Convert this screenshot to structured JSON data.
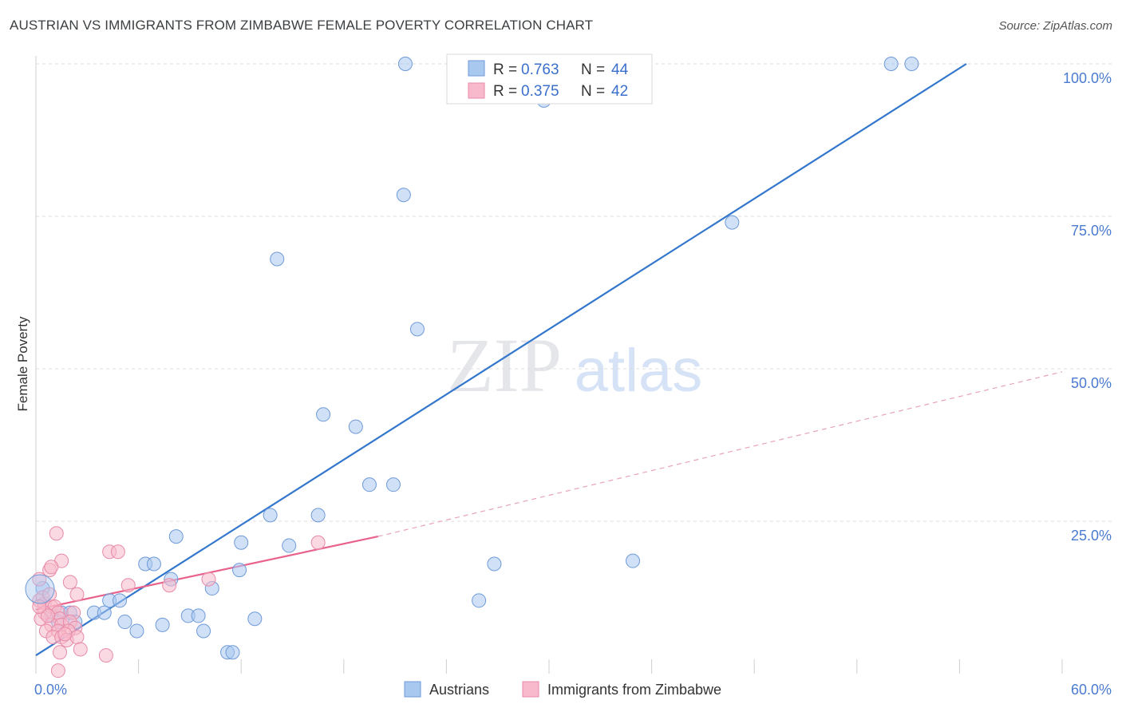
{
  "title": "AUSTRIAN VS IMMIGRANTS FROM ZIMBABWE FEMALE POVERTY CORRELATION CHART",
  "source": "Source: ZipAtlas.com",
  "watermark": {
    "zip": "ZIP",
    "atlas": "atlas"
  },
  "legend_top": [
    {
      "r_label": "R =",
      "r_value": "0.763",
      "n_label": "N =",
      "n_value": "44",
      "color": "#a9c8f0"
    },
    {
      "r_label": "R =",
      "r_value": "0.375",
      "n_label": "N =",
      "n_value": "42",
      "color": "#f7b9cb"
    }
  ],
  "legend_bottom": [
    {
      "label": "Austrians",
      "color": "#a9c8f0"
    },
    {
      "label": "Immigrants from Zimbabwe",
      "color": "#f7b9cb"
    }
  ],
  "chart_data": {
    "type": "scatter",
    "title": "AUSTRIAN VS IMMIGRANTS FROM ZIMBABWE FEMALE POVERTY CORRELATION CHART",
    "xlabel": "",
    "ylabel": "Female Poverty",
    "xlim": [
      0,
      60
    ],
    "ylim": [
      0,
      100
    ],
    "x_tick_labels": [
      "0.0%",
      "60.0%"
    ],
    "y_tick_labels": [
      "25.0%",
      "50.0%",
      "75.0%",
      "100.0%"
    ],
    "y_ticks": [
      25,
      50,
      75,
      100
    ],
    "grid": true,
    "series": [
      {
        "name": "Austrians",
        "color": "#5b8fd9",
        "fill": "#a9c8f0",
        "r": "0.763",
        "n": "44",
        "trend": {
          "x0": 0,
          "y0": 3,
          "x1": 54.4,
          "y1": 100,
          "style": "solid"
        },
        "points": [
          [
            21.6,
            100
          ],
          [
            50,
            100
          ],
          [
            51.2,
            100
          ],
          [
            29.7,
            94
          ],
          [
            21.5,
            78.5
          ],
          [
            40.7,
            74
          ],
          [
            14.1,
            68
          ],
          [
            22.3,
            56.5
          ],
          [
            16.8,
            42.5
          ],
          [
            18.7,
            40.5
          ],
          [
            19.5,
            31
          ],
          [
            20.9,
            31
          ],
          [
            13.7,
            26
          ],
          [
            16.5,
            26
          ],
          [
            8.2,
            22.5
          ],
          [
            12,
            21.5
          ],
          [
            14.8,
            21
          ],
          [
            6.4,
            18
          ],
          [
            6.9,
            18
          ],
          [
            11.9,
            17
          ],
          [
            26.8,
            18
          ],
          [
            34.9,
            18.5
          ],
          [
            7.9,
            15.5
          ],
          [
            10.3,
            14
          ],
          [
            25.9,
            12
          ],
          [
            4.3,
            12
          ],
          [
            4.9,
            12
          ],
          [
            1.5,
            10
          ],
          [
            2,
            10
          ],
          [
            3.4,
            10
          ],
          [
            4,
            10
          ],
          [
            8.9,
            9.5
          ],
          [
            9.5,
            9.5
          ],
          [
            2.3,
            8.5
          ],
          [
            5.2,
            8.5
          ],
          [
            12.8,
            9
          ],
          [
            0.9,
            9.5
          ],
          [
            5.9,
            7
          ],
          [
            7.4,
            8
          ],
          [
            9.8,
            7
          ],
          [
            11.2,
            3.5
          ],
          [
            11.5,
            3.5
          ],
          [
            0.4,
            14
          ],
          [
            1.3,
            8.5
          ]
        ]
      },
      {
        "name": "Immigrants from Zimbabwe",
        "color": "#e8628c",
        "fill": "#f7b9cb",
        "r": "0.375",
        "n": "42",
        "trend": {
          "x0": 0,
          "y0": 10.5,
          "x1": 20,
          "y1": 22.5,
          "style": "solid"
        },
        "trend_ext": {
          "x0": 20,
          "y0": 22.5,
          "x1": 60,
          "y1": 49.5,
          "style": "dashed"
        },
        "points": [
          [
            1.2,
            23
          ],
          [
            4.3,
            20
          ],
          [
            4.8,
            20
          ],
          [
            1.5,
            18.5
          ],
          [
            0.8,
            17
          ],
          [
            0.9,
            17.5
          ],
          [
            0.2,
            15.5
          ],
          [
            2.0,
            15
          ],
          [
            5.4,
            14.5
          ],
          [
            7.8,
            14.5
          ],
          [
            10.1,
            15.5
          ],
          [
            16.5,
            21.5
          ],
          [
            2.4,
            13
          ],
          [
            0.2,
            12
          ],
          [
            0.5,
            11.5
          ],
          [
            0.9,
            11
          ],
          [
            1.1,
            11
          ],
          [
            0.4,
            12.5
          ],
          [
            0.5,
            10
          ],
          [
            1.3,
            10
          ],
          [
            2.2,
            10
          ],
          [
            0.3,
            9
          ],
          [
            1.4,
            9
          ],
          [
            0.9,
            8
          ],
          [
            1.5,
            8
          ],
          [
            2.0,
            8.5
          ],
          [
            2.3,
            7.5
          ],
          [
            0.6,
            7
          ],
          [
            1.3,
            7
          ],
          [
            1.9,
            7
          ],
          [
            1.0,
            6
          ],
          [
            1.5,
            6
          ],
          [
            1.8,
            5.5
          ],
          [
            2.4,
            6
          ],
          [
            2.6,
            4
          ],
          [
            1.4,
            3.5
          ],
          [
            4.1,
            3
          ],
          [
            1.3,
            0.5
          ],
          [
            0.7,
            9.5
          ],
          [
            1.7,
            6.5
          ],
          [
            0.2,
            11
          ],
          [
            0.8,
            13
          ]
        ]
      }
    ]
  }
}
